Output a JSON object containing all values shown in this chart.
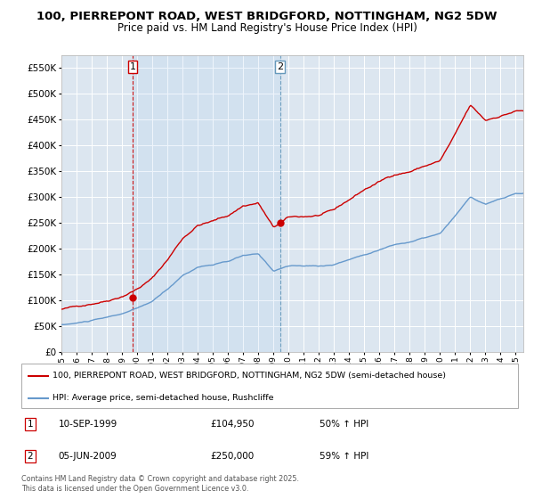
{
  "title": "100, PIERREPONT ROAD, WEST BRIDGFORD, NOTTINGHAM, NG2 5DW",
  "subtitle": "Price paid vs. HM Land Registry's House Price Index (HPI)",
  "legend_line1": "100, PIERREPONT ROAD, WEST BRIDGFORD, NOTTINGHAM, NG2 5DW (semi-detached house)",
  "legend_line2": "HPI: Average price, semi-detached house, Rushcliffe",
  "annotation1_date": "10-SEP-1999",
  "annotation1_price": "£104,950",
  "annotation1_hpi": "50% ↑ HPI",
  "annotation2_date": "05-JUN-2009",
  "annotation2_price": "£250,000",
  "annotation2_hpi": "59% ↑ HPI",
  "footer": "Contains HM Land Registry data © Crown copyright and database right 2025.\nThis data is licensed under the Open Government Licence v3.0.",
  "sale1_year": 1999.7,
  "sale1_value": 104950,
  "sale2_year": 2009.43,
  "sale2_value": 250000,
  "red_color": "#cc0000",
  "blue_color": "#6699cc",
  "vline1_color": "#cc0000",
  "vline2_color": "#6699bb",
  "bg_color": "#dce6f0",
  "plot_bg": "#ffffff",
  "ylim_max": 575000,
  "ylim_min": 0,
  "hpi_anchors_x": [
    1995,
    1996,
    1997,
    1998,
    1999,
    2000,
    2001,
    2002,
    2003,
    2004,
    2005,
    2006,
    2007,
    2008,
    2009,
    2010,
    2011,
    2012,
    2013,
    2014,
    2015,
    2016,
    2017,
    2018,
    2019,
    2020,
    2021,
    2022,
    2023,
    2024,
    2025
  ],
  "hpi_anchors_y": [
    52000,
    55000,
    60000,
    65000,
    72000,
    82000,
    95000,
    118000,
    145000,
    162000,
    167000,
    172000,
    183000,
    185000,
    153000,
    163000,
    162000,
    162000,
    165000,
    175000,
    185000,
    195000,
    205000,
    210000,
    218000,
    225000,
    258000,
    295000,
    280000,
    290000,
    300000
  ],
  "price_scale_x": [
    1995,
    2000,
    2005,
    2010,
    2015,
    2020,
    2025
  ],
  "price_scale_y": [
    1.58,
    1.55,
    1.55,
    1.62,
    1.7,
    1.65,
    1.55
  ],
  "hpi_noise_seed": 10,
  "price_noise_seed": 42,
  "n_points": 370
}
